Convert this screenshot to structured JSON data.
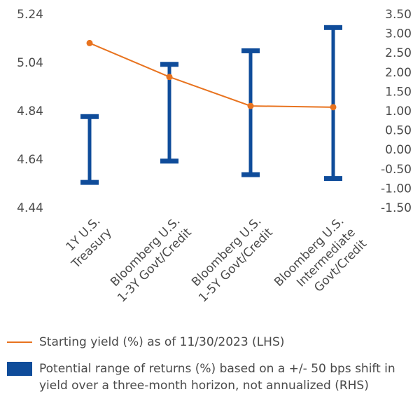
{
  "chart_data": {
    "type": "range-and-line",
    "categories": [
      [
        "1Y U.S.",
        "Treasury"
      ],
      [
        "Bloomberg U.S.",
        "1-3Y Govt/Credit"
      ],
      [
        "Bloomberg U.S.",
        "1-5Y Govt/Credit"
      ],
      [
        "Bloomberg U.S.",
        "Intermediate",
        "Govt/Credit"
      ]
    ],
    "left_axis": {
      "ticks": [
        "5.24",
        "5.04",
        "4.84",
        "4.64",
        "4.44"
      ],
      "tick_values": [
        5.24,
        5.04,
        4.84,
        4.64,
        4.44
      ],
      "ylim": [
        4.44,
        5.24
      ]
    },
    "right_axis": {
      "ticks": [
        "3.50",
        "3.00",
        "2.50",
        "2.00",
        "1.50",
        "1.00",
        "0.50",
        "0.00",
        "-0.50",
        "-1.00",
        "-1.50"
      ],
      "tick_values": [
        3.5,
        3.0,
        2.5,
        2.0,
        1.5,
        1.0,
        0.5,
        0.0,
        -0.5,
        -1.0,
        -1.5
      ],
      "ylim": [
        -1.5,
        3.5
      ]
    },
    "series": [
      {
        "name": "Starting yield (%) as of 11/30/2023 (LHS)",
        "type": "line",
        "axis": "left",
        "color": "#e8731f",
        "values": [
          5.12,
          4.98,
          4.86,
          4.855
        ]
      },
      {
        "name": "Potential range of returns (%) based on a +/- 50 bps shift in yield over a three-month horizon, not annualized (RHS)",
        "type": "range",
        "axis": "right",
        "color": "#0f4c9a",
        "low": [
          -0.85,
          -0.3,
          -0.65,
          -0.75
        ],
        "high": [
          0.85,
          2.2,
          2.55,
          3.15
        ]
      }
    ]
  },
  "legend": {
    "line_label": "Starting yield (%) as of 11/30/2023 (LHS)",
    "range_label": "Potential range of returns (%) based on a +/- 50 bps shift in yield over a three-month horizon, not annualized (RHS)"
  }
}
